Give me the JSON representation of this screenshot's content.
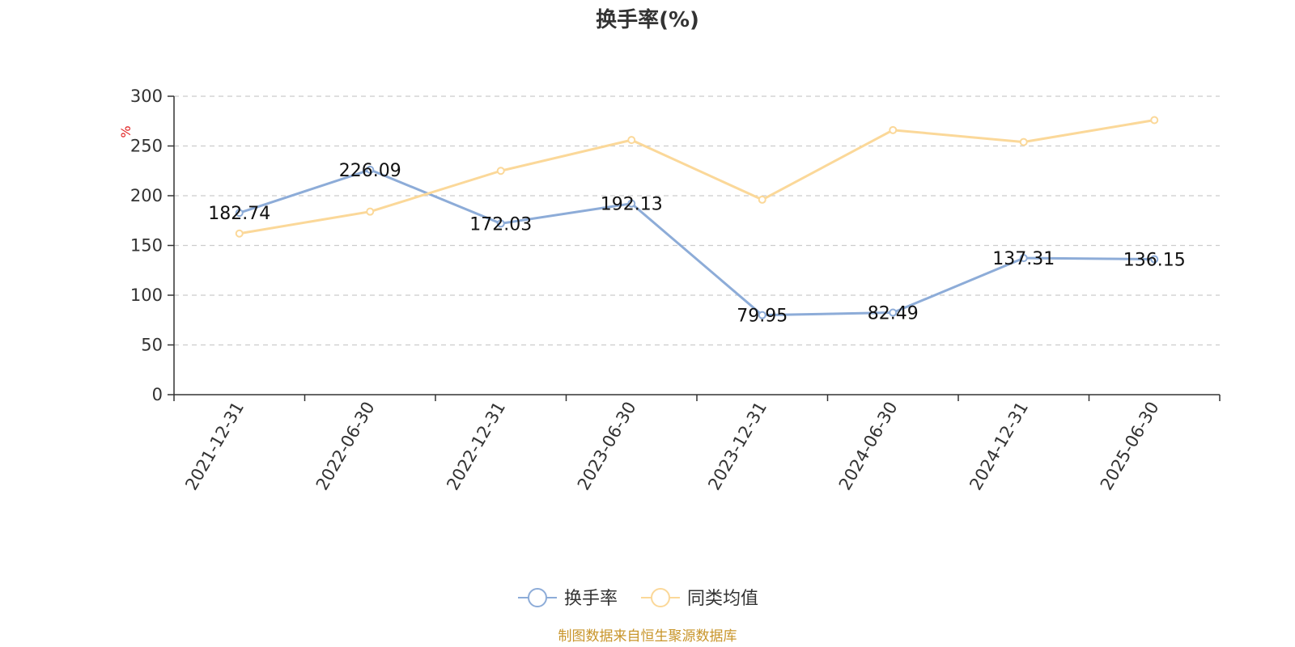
{
  "chart_data": {
    "type": "line",
    "title": "换手率(%)",
    "ylabel": "%",
    "ylim": [
      0,
      300
    ],
    "yticks": [
      0,
      50,
      100,
      150,
      200,
      250,
      300
    ],
    "grid": true,
    "legend_position": "bottom-center",
    "categories": [
      "2021-12-31",
      "2022-06-30",
      "2022-12-31",
      "2023-06-30",
      "2023-12-31",
      "2024-06-30",
      "2024-12-31",
      "2025-06-30"
    ],
    "series": [
      {
        "name": "换手率",
        "color": "#8dacd8",
        "values": [
          182.74,
          226.09,
          172.03,
          192.13,
          79.95,
          82.49,
          137.31,
          136.15
        ],
        "show_labels": true
      },
      {
        "name": "同类均值",
        "color": "#fbd899",
        "values": [
          162,
          184,
          225,
          256,
          196,
          266,
          254,
          276
        ],
        "show_labels": false
      }
    ],
    "ylabel_color": "#e02020"
  },
  "source": {
    "text": "制图数据来自恒生聚源数据库",
    "color": "#c8952a"
  }
}
